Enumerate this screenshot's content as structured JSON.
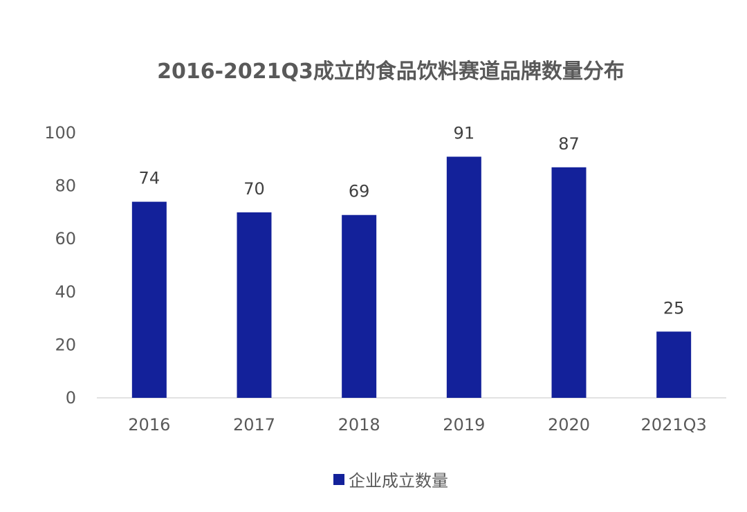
{
  "chart_data": {
    "type": "bar",
    "title": "2016-2021Q3成立的食品饮料赛道品牌数量分布",
    "categories": [
      "2016",
      "2017",
      "2018",
      "2019",
      "2020",
      "2021Q3"
    ],
    "series": [
      {
        "name": "企业成立数量",
        "values": [
          74,
          70,
          69,
          91,
          87,
          25
        ],
        "color": "#13219a"
      }
    ],
    "ylim": [
      0,
      100
    ],
    "yticks": [
      0,
      20,
      40,
      60,
      80,
      100
    ],
    "grid": false,
    "legend": "bottom",
    "data_labels": true
  }
}
